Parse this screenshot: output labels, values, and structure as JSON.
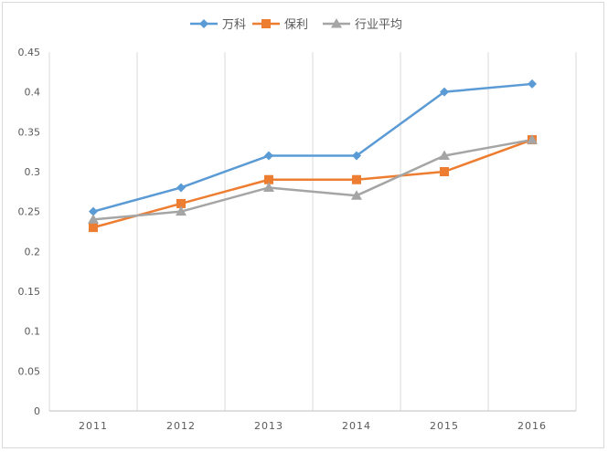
{
  "chart_data": {
    "type": "line",
    "categories": [
      "2011",
      "2012",
      "2013",
      "2014",
      "2015",
      "2016"
    ],
    "ylim": [
      0,
      0.45
    ],
    "yticks": [
      "0",
      "0.05",
      "0.1",
      "0.15",
      "0.2",
      "0.25",
      "0.3",
      "0.35",
      "0.4",
      "0.45"
    ],
    "grid": "vertical",
    "legend_position": "top",
    "series": [
      {
        "name": "万科",
        "values": [
          0.25,
          0.28,
          0.32,
          0.32,
          0.4,
          0.41
        ],
        "color": "#5b9bd5",
        "marker": "diamond"
      },
      {
        "name": "保利",
        "values": [
          0.23,
          0.26,
          0.29,
          0.29,
          0.3,
          0.34
        ],
        "color": "#ed7d31",
        "marker": "square"
      },
      {
        "name": "行业平均",
        "values": [
          0.24,
          0.25,
          0.28,
          0.27,
          0.32,
          0.34
        ],
        "color": "#a5a5a5",
        "marker": "triangle"
      }
    ]
  }
}
